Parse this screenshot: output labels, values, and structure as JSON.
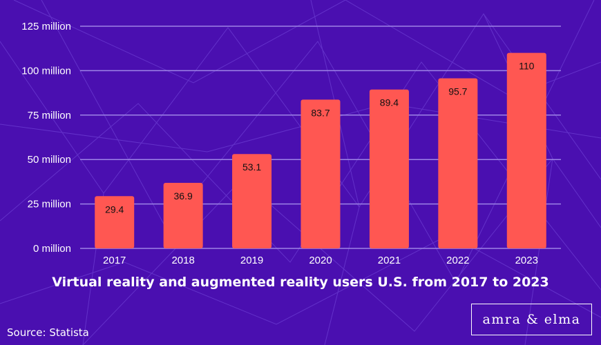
{
  "colors": {
    "background": "#4a0fb0",
    "bar": "#ff5752",
    "grid": "#9e84e6",
    "text": "#ffffff",
    "value_label": "#111111"
  },
  "chart_data": {
    "type": "bar",
    "title": "Virtual reality and augmented reality users U.S. from 2017 to 2023",
    "categories": [
      "2017",
      "2018",
      "2019",
      "2020",
      "2021",
      "2022",
      "2023"
    ],
    "values": [
      29.4,
      36.9,
      53.1,
      83.7,
      89.4,
      95.7,
      110
    ],
    "value_labels": [
      "29.4",
      "36.9",
      "53.1",
      "83.7",
      "89.4",
      "95.7",
      "110"
    ],
    "ylim": [
      0,
      125
    ],
    "yticks": [
      0,
      25,
      50,
      75,
      100,
      125
    ],
    "ytick_labels": [
      "0 million",
      "25 million",
      "50 million",
      "75 million",
      "100 million",
      "125 million"
    ],
    "grid": true,
    "xlabel": "",
    "ylabel": ""
  },
  "footer": {
    "source": "Source: Statista",
    "logo": "amra & elma"
  }
}
